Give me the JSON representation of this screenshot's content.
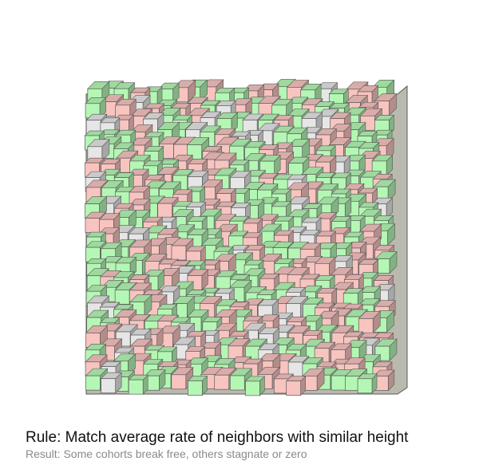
{
  "caption": {
    "rule": "Rule: Match average rate of neighbors with similar height",
    "result": "Result: Some cohorts break free, others stagnate or zero"
  },
  "colors": {
    "green": "#b4f7b4",
    "pink": "#f8c4c0",
    "gray": "#e6e6e6",
    "outline": "#5a5a5a",
    "shade": "#8f8f86"
  },
  "visual": {
    "type": "isometric cube field",
    "cube_states": [
      "green",
      "pink",
      "gray"
    ]
  }
}
